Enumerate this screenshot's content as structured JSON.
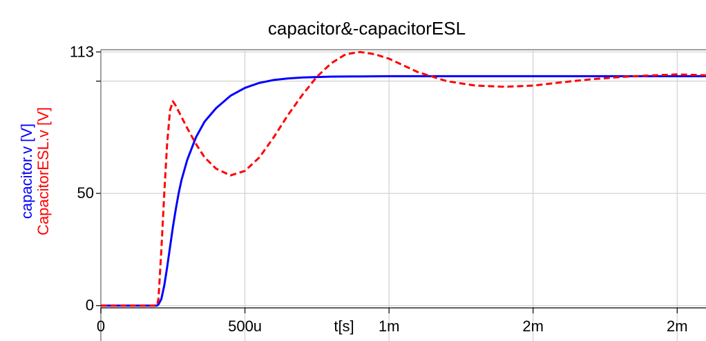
{
  "chart_data": {
    "type": "line",
    "title": "capacitor&-capacitorESL",
    "xlabel": "t[s]",
    "ylabel_lines": [
      "capacitor.v [V]",
      "CapacitorESL.v [V]"
    ],
    "xlim": [
      0,
      0.0021
    ],
    "ylim": [
      -1,
      114
    ],
    "x_ticks": [
      {
        "value": 0,
        "label": "0"
      },
      {
        "value": 0.0005,
        "label": "500u"
      },
      {
        "value": 0.001,
        "label": "1m"
      },
      {
        "value": 0.0015,
        "label": "2m"
      },
      {
        "value": 0.002,
        "label": "2m"
      }
    ],
    "y_ticks": [
      {
        "value": 0,
        "label": "0"
      },
      {
        "value": 50,
        "label": "50"
      },
      {
        "value": 100,
        "label": ""
      },
      {
        "value": 113,
        "label": "113"
      }
    ],
    "grid": true,
    "series": [
      {
        "name": "capacitor.v [V]",
        "color": "#0000ff",
        "style": "solid",
        "x": [
          0,
          0.000195,
          0.0002,
          0.00021,
          0.00022,
          0.00023,
          0.00024,
          0.00025,
          0.00026,
          0.00027,
          0.00028,
          0.0003,
          0.00033,
          0.00036,
          0.0004,
          0.00045,
          0.0005,
          0.00055,
          0.0006,
          0.00065,
          0.0007,
          0.0008,
          0.0009,
          0.001,
          0.0012,
          0.0015,
          0.0018,
          0.0021
        ],
        "y": [
          0,
          0,
          0.5,
          3,
          9,
          17,
          26,
          35,
          43,
          50,
          56,
          65,
          75,
          82,
          88,
          93.5,
          97,
          99.2,
          100.5,
          101.2,
          101.6,
          102,
          102.1,
          102.2,
          102.2,
          102.2,
          102.2,
          102.2
        ]
      },
      {
        "name": "CapacitorESL.v [V]",
        "color": "#ff0000",
        "style": "dashed",
        "x": [
          0,
          0.000195,
          0.0002,
          0.00021,
          0.00022,
          0.00023,
          0.00024,
          0.00025,
          0.00026,
          0.00028,
          0.0003,
          0.00033,
          0.00036,
          0.0004,
          0.00045,
          0.0005,
          0.00055,
          0.0006,
          0.00065,
          0.0007,
          0.00075,
          0.0008,
          0.00085,
          0.0009,
          0.00095,
          0.001,
          0.0011,
          0.0012,
          0.0013,
          0.0014,
          0.0015,
          0.0016,
          0.0017,
          0.0018,
          0.0019,
          0.002,
          0.0021
        ],
        "y": [
          0,
          0,
          3,
          25,
          50,
          72,
          87,
          91,
          89,
          84,
          79,
          72,
          66,
          61,
          58,
          60,
          66,
          75,
          85,
          94,
          102,
          108,
          112,
          113,
          112,
          110,
          104,
          100,
          98,
          97.5,
          98,
          99.5,
          100.8,
          101.8,
          102.5,
          103,
          102.6
        ]
      }
    ]
  }
}
